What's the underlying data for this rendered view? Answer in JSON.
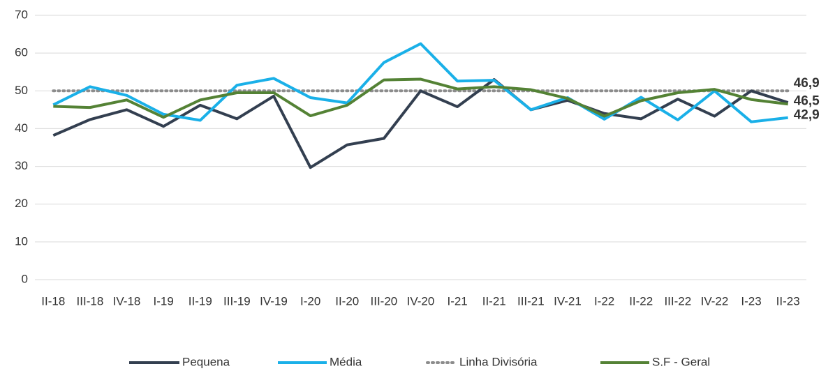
{
  "chart_data": {
    "type": "line",
    "categories": [
      "II-18",
      "III-18",
      "IV-18",
      "I-19",
      "II-19",
      "III-19",
      "IV-19",
      "I-20",
      "II-20",
      "III-20",
      "IV-20",
      "I-21",
      "II-21",
      "III-21",
      "IV-21",
      "I-22",
      "II-22",
      "III-22",
      "IV-22",
      "I-23",
      "II-23"
    ],
    "series": [
      {
        "name": "Pequena",
        "color": "#333f50",
        "style": "solid",
        "values": [
          38.2,
          42.4,
          45,
          40.6,
          46.2,
          42.6,
          48.6,
          29.7,
          35.7,
          37.4,
          50,
          45.8,
          53,
          45,
          47.5,
          44,
          42.6,
          47.8,
          43.3,
          50,
          46.9
        ],
        "value_labels": [
          null,
          null,
          null,
          null,
          null,
          null,
          null,
          null,
          null,
          null,
          null,
          null,
          null,
          null,
          null,
          null,
          null,
          null,
          null,
          null,
          "46,9"
        ]
      },
      {
        "name": "Média",
        "color": "#1ab0e8",
        "style": "solid",
        "values": [
          46.3,
          51.1,
          48.8,
          43.8,
          42.2,
          51.5,
          53.3,
          48.2,
          46.8,
          57.5,
          62.5,
          52.6,
          52.8,
          45,
          48.2,
          42.5,
          48.3,
          42.3,
          50,
          41.8,
          42.9
        ],
        "value_labels": [
          null,
          null,
          null,
          null,
          null,
          null,
          null,
          null,
          null,
          null,
          null,
          null,
          null,
          null,
          null,
          null,
          null,
          null,
          null,
          null,
          "42,9"
        ]
      },
      {
        "name": "Linha Divisória",
        "color": "#8c8c8c",
        "style": "dotted",
        "values": [
          50,
          50,
          50,
          50,
          50,
          50,
          50,
          50,
          50,
          50,
          50,
          50,
          50,
          50,
          50,
          50,
          50,
          50,
          50,
          50,
          50
        ]
      },
      {
        "name": "S.F - Geral",
        "color": "#548235",
        "style": "solid",
        "values": [
          45.9,
          45.6,
          47.6,
          43,
          47.6,
          49.5,
          49.5,
          43.4,
          46.2,
          52.9,
          53.1,
          50.5,
          51.1,
          50.3,
          48,
          43.3,
          47.4,
          49.5,
          50.4,
          47.7,
          46.5
        ],
        "value_labels": [
          null,
          null,
          null,
          null,
          null,
          null,
          null,
          null,
          null,
          null,
          null,
          null,
          null,
          null,
          null,
          null,
          null,
          null,
          null,
          null,
          "46,5"
        ]
      }
    ],
    "ylim": [
      0,
      70
    ],
    "yticks": [
      0,
      10,
      20,
      30,
      40,
      50,
      60,
      70
    ],
    "grid": true,
    "legend": "bottom"
  }
}
